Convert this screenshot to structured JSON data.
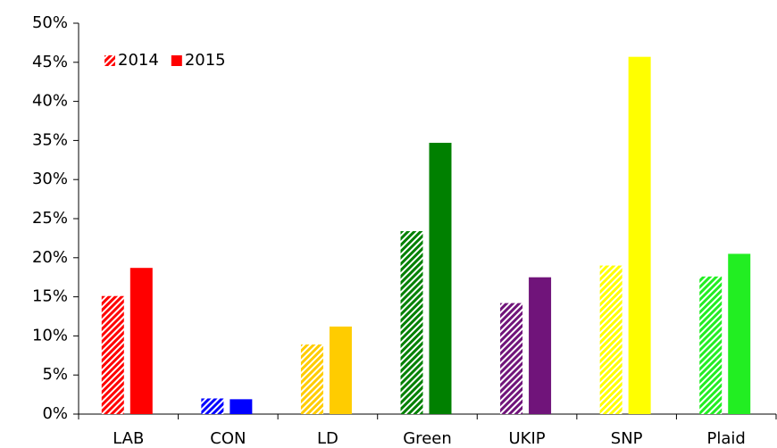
{
  "chart_data": {
    "type": "bar",
    "categories": [
      "LAB",
      "CON",
      "LD",
      "Green",
      "UKIP",
      "SNP",
      "Plaid"
    ],
    "colors": [
      "#ff0000",
      "#0000ff",
      "#ffcc00",
      "#008000",
      "#70147a",
      "#ffff00",
      "#22ee22"
    ],
    "series": [
      {
        "name": "2014",
        "pattern": "hatch",
        "values": [
          15.1,
          2.0,
          8.9,
          23.4,
          14.2,
          19.0,
          17.6
        ]
      },
      {
        "name": "2015",
        "pattern": "solid",
        "values": [
          18.7,
          1.9,
          11.2,
          34.7,
          17.5,
          45.7,
          20.5
        ]
      }
    ],
    "ylim": [
      0,
      50
    ],
    "yticks": [
      {
        "value": 0,
        "label": "0%"
      },
      {
        "value": 5,
        "label": "5%"
      },
      {
        "value": 10,
        "label": "10%"
      },
      {
        "value": 15,
        "label": "15%"
      },
      {
        "value": 20,
        "label": "20%"
      },
      {
        "value": 25,
        "label": "25%"
      },
      {
        "value": 30,
        "label": "30%"
      },
      {
        "value": 35,
        "label": "35%"
      },
      {
        "value": 40,
        "label": "40%"
      },
      {
        "value": 45,
        "label": "45%"
      },
      {
        "value": 50,
        "label": "50%"
      }
    ],
    "legend": "top-left"
  }
}
